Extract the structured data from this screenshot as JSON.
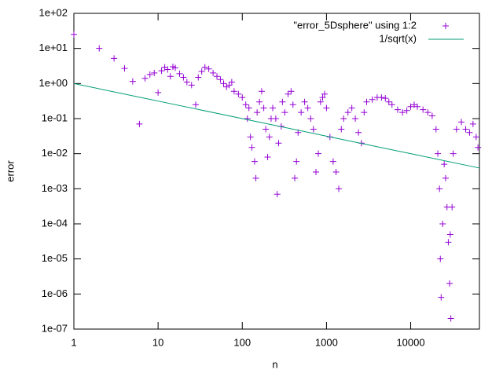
{
  "chart_data": {
    "type": "scatter",
    "xlabel": "n",
    "ylabel": "error",
    "xscale": "log",
    "yscale": "log",
    "xlim": [
      1,
      65536
    ],
    "ylim": [
      1e-07,
      100
    ],
    "xticks": [
      1,
      10,
      100,
      1000,
      10000
    ],
    "yticks": [
      {
        "value": 1e-07,
        "label": "1e-07"
      },
      {
        "value": 1e-06,
        "label": "1e-06"
      },
      {
        "value": 1e-05,
        "label": "1e-05"
      },
      {
        "value": 0.0001,
        "label": "1e-04"
      },
      {
        "value": 0.001,
        "label": "1e-03"
      },
      {
        "value": 0.01,
        "label": "1e-02"
      },
      {
        "value": 0.1,
        "label": "1e-01"
      },
      {
        "value": 1,
        "label": "1e+00"
      },
      {
        "value": 10,
        "label": "1e+01"
      },
      {
        "value": 100,
        "label": "1e+02"
      }
    ],
    "legend": "top right",
    "series": [
      {
        "name": "\"error_5Dsphere\" using 1:2",
        "type": "points",
        "color": "#9400d3",
        "x": [
          1,
          2,
          3,
          4,
          5,
          6,
          7,
          8,
          9,
          10,
          11,
          12,
          13,
          14,
          15,
          16,
          18,
          20,
          22,
          25,
          28,
          30,
          33,
          36,
          40,
          45,
          50,
          55,
          60,
          65,
          70,
          75,
          80,
          90,
          100,
          110,
          115,
          120,
          125,
          130,
          140,
          145,
          150,
          160,
          170,
          180,
          190,
          200,
          210,
          220,
          230,
          250,
          260,
          270,
          290,
          300,
          320,
          350,
          380,
          400,
          420,
          440,
          460,
          500,
          550,
          600,
          650,
          700,
          750,
          800,
          850,
          900,
          950,
          1000,
          1100,
          1200,
          1300,
          1400,
          1500,
          1600,
          1800,
          2000,
          2200,
          2400,
          2600,
          2800,
          3000,
          3500,
          4000,
          4500,
          5000,
          5500,
          6000,
          7000,
          8000,
          9000,
          10000,
          11000,
          12000,
          14000,
          16000,
          18000,
          20000,
          21000,
          22000,
          22500,
          23000,
          24000,
          25000,
          26000,
          27000,
          28000,
          29000,
          29500,
          30000,
          31000,
          32000,
          35000,
          40000,
          45000,
          50000,
          55000,
          60000,
          63000
        ],
        "values": [
          25,
          10,
          5.2,
          2.7,
          1.15,
          0.07,
          1.4,
          1.8,
          2.0,
          0.55,
          2.3,
          2.9,
          2.5,
          1.6,
          3.0,
          2.8,
          1.9,
          1.5,
          1.1,
          0.9,
          0.25,
          1.5,
          2.2,
          2.9,
          2.6,
          2.0,
          1.6,
          1.3,
          1.0,
          0.8,
          0.9,
          1.1,
          0.6,
          0.5,
          0.4,
          0.25,
          0.1,
          0.2,
          0.03,
          0.015,
          0.006,
          0.002,
          0.15,
          0.3,
          0.6,
          0.2,
          0.05,
          0.008,
          0.03,
          0.1,
          0.2,
          0.1,
          0.0007,
          0.02,
          0.06,
          0.3,
          0.15,
          0.5,
          0.6,
          0.25,
          0.002,
          0.006,
          0.04,
          0.15,
          0.3,
          0.2,
          0.1,
          0.05,
          0.003,
          0.01,
          0.3,
          0.4,
          0.5,
          0.2,
          0.03,
          0.006,
          0.003,
          0.001,
          0.05,
          0.1,
          0.15,
          0.2,
          0.1,
          0.04,
          0.02,
          0.15,
          0.3,
          0.35,
          0.4,
          0.4,
          0.38,
          0.3,
          0.25,
          0.18,
          0.15,
          0.17,
          0.22,
          0.25,
          0.22,
          0.18,
          0.15,
          0.12,
          0.05,
          0.01,
          0.001,
          1e-05,
          8e-07,
          0.0001,
          0.005,
          0.002,
          0.0003,
          3e-05,
          2e-06,
          5e-05,
          2e-07,
          0.0003,
          0.01,
          0.05,
          0.08,
          0.05,
          0.04,
          0.07,
          0.03,
          0.015
        ]
      },
      {
        "name": "1/sqrt(x)",
        "type": "line",
        "color": "#009e73",
        "x": [
          1,
          10,
          100,
          1000,
          10000,
          65536
        ],
        "values": [
          1,
          0.316,
          0.1,
          0.0316,
          0.01,
          0.0039
        ]
      }
    ]
  }
}
